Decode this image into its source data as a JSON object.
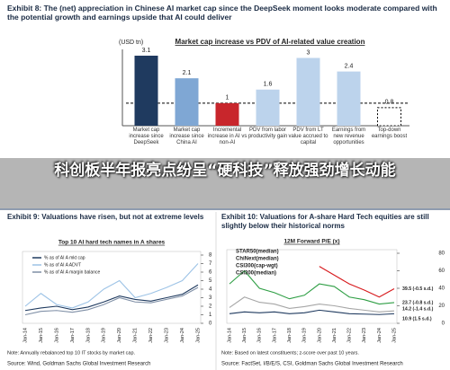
{
  "chart_data": [
    {
      "type": "bar",
      "title": "Exhibit 8: The (net) appreciation in Chinese AI market cap since the DeepSeek moment looks moderate compared with the potential growth and earnings upside that AI could deliver",
      "subtitle": "Market cap increase vs PDV of AI-related value creation",
      "y_label": "(USD tn)",
      "categories": [
        "Market cap increase since DeepSeek",
        "Market cap increase since China AI",
        "Incremental increase in AI vs non-AI",
        "PDV from labor productivity gain",
        "PDV from LT value accrued to capital",
        "Earnings from new revenue opportunities",
        "Top-down earnings boost"
      ],
      "values": [
        3.1,
        2.1,
        1,
        1.6,
        3,
        2.4,
        0.8
      ],
      "colors": [
        "#1f3a5f",
        "#7fa7d4",
        "#c8262c",
        "#bcd3ec",
        "#bcd3ec",
        "#bcd3ec",
        "#ffffff"
      ],
      "reference_line": 1
    },
    {
      "type": "line",
      "title": "Exhibit 9: Valuations have risen, but not at extreme levels",
      "subtitle": "Top 10 AI hard tech names in A shares",
      "categories": [
        "Jan-14",
        "Jan-15",
        "Jan-16",
        "Jan-17",
        "Jan-18",
        "Jan-19",
        "Jan-20",
        "Jan-21",
        "Jan-22",
        "Jan-23",
        "Jan-24",
        "Jan-25"
      ],
      "series": [
        {
          "name": "% as of AI A mkt cap",
          "color": "#1f3a5f",
          "values": [
            1.5,
            1.8,
            2.0,
            1.6,
            1.9,
            2.5,
            3.2,
            2.8,
            2.6,
            3.0,
            3.4,
            4.5
          ]
        },
        {
          "name": "% as of AI A ADVT",
          "color": "#9dc3e6",
          "values": [
            2.0,
            3.5,
            2.2,
            1.8,
            2.5,
            4.0,
            5.0,
            3.0,
            3.5,
            4.2,
            5.0,
            7.0
          ]
        },
        {
          "name": "% as of AI A margin balance",
          "color": "#7f8fa6",
          "values": [
            1.0,
            1.4,
            1.5,
            1.3,
            1.6,
            2.2,
            3.0,
            2.5,
            2.4,
            2.8,
            3.2,
            4.2
          ]
        }
      ],
      "ylim": [
        0,
        8
      ],
      "yticks": [
        0,
        1,
        2,
        3,
        4,
        5,
        6,
        7,
        8
      ],
      "legend": "upper left",
      "note": "Note: Annually rebalanced top 10 IT stocks by market cap.",
      "source": "Source: Wind, Goldman Sachs Global Investment Research"
    },
    {
      "type": "line",
      "title": "Exhibit 10: Valuations for A-share Hard Tech equities are still slightly below their historical norms",
      "subtitle": "12M Forward P/E (x)",
      "categories": [
        "Jan-14",
        "Jan-15",
        "Jan-16",
        "Jan-17",
        "Jan-18",
        "Jan-19",
        "Jan-20",
        "Jan-21",
        "Jan-22",
        "Jan-23",
        "Jan-24",
        "Jan-25"
      ],
      "series": [
        {
          "name": "STAR50(median)",
          "color": "#d7191c",
          "values": [
            null,
            null,
            null,
            null,
            null,
            null,
            65,
            55,
            45,
            38,
            30,
            39.5
          ],
          "end_label": "39.5 (-0.5 s.d.)"
        },
        {
          "name": "ChiNext(median)",
          "color": "#2e9e44",
          "values": [
            45,
            60,
            40,
            35,
            28,
            32,
            45,
            42,
            30,
            27,
            22,
            23.7
          ],
          "end_label": "23.7 (-0.8 s.d.)"
        },
        {
          "name": "CSI300(cap-wgt)",
          "color": "#1f3a5f",
          "values": [
            11,
            13,
            12,
            13,
            11,
            12,
            15,
            13,
            11,
            10.5,
            10,
            10.9
          ],
          "end_label": "10.9 (1.5 s.d.)"
        },
        {
          "name": "CSI300(median)",
          "color": "#a6a6a6",
          "values": [
            18,
            30,
            24,
            22,
            17,
            19,
            22,
            20,
            17,
            15,
            13,
            14.2
          ],
          "end_label": "14.2 (-1.4 s.d.)"
        }
      ],
      "ylim": [
        0,
        80
      ],
      "yticks": [
        0,
        20,
        40,
        60,
        80
      ],
      "legend": "upper left",
      "note": "Note: Based on latest constituents; z-score over past 10 years.",
      "source": "Source: FactSet, I/B/E/S, CSI, Goldman Sachs Global Investment Research"
    }
  ],
  "overlay": {
    "headline": "科创板半年报亮点纷呈“硬科技”释放强劲增长动能"
  }
}
